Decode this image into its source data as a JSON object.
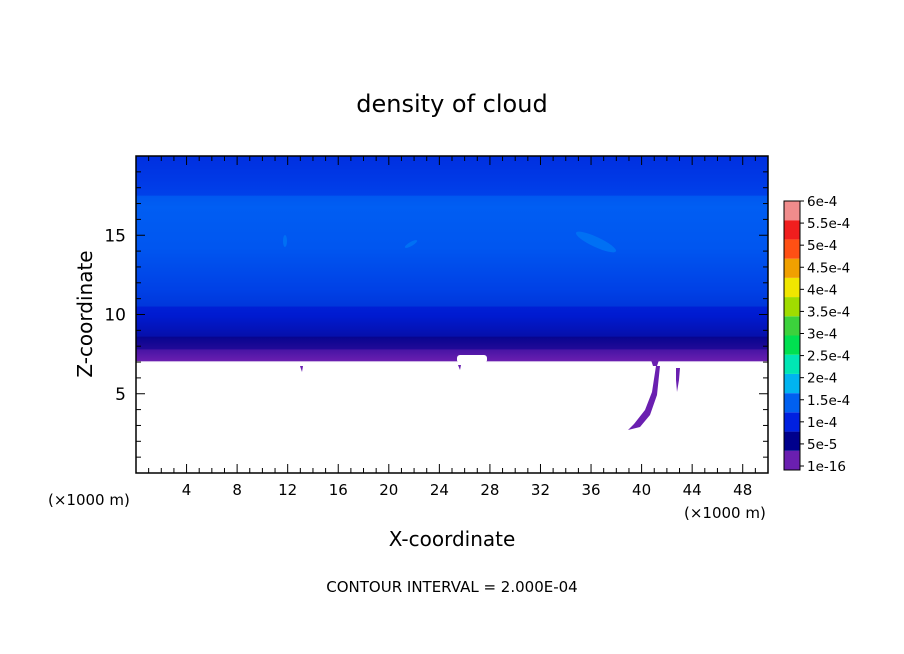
{
  "chart_data": {
    "type": "heatmap",
    "title": "density of cloud",
    "xlabel": "X-coordinate",
    "ylabel": "Z-coordinate",
    "x_unit_left": "(×1000 m)",
    "x_unit_right": "(×1000 m)",
    "footer": "CONTOUR INTERVAL = 2.000E-04",
    "xlim": [
      0,
      50
    ],
    "ylim": [
      0,
      20
    ],
    "x_ticks": [
      4,
      8,
      12,
      16,
      20,
      24,
      28,
      32,
      36,
      40,
      44,
      48
    ],
    "y_ticks": [
      5,
      10,
      15
    ],
    "colorbar": {
      "labels": [
        "1e-16",
        "5e-5",
        "1e-4",
        "1.5e-4",
        "2e-4",
        "2.5e-4",
        "3e-4",
        "3.5e-4",
        "4e-4",
        "4.5e-4",
        "5e-4",
        "5.5e-4",
        "6e-4"
      ],
      "colors": [
        "#6a1fb0",
        "#00008c",
        "#0020e0",
        "#0060f0",
        "#00b4f0",
        "#00e6b4",
        "#00e050",
        "#3cd23c",
        "#a0dc00",
        "#f0e600",
        "#f0a000",
        "#ff5014",
        "#f01e1e",
        "#f08c8c"
      ]
    },
    "bands": [
      {
        "z_from": 7.0,
        "z_to": 7.8,
        "level": "1e-16"
      },
      {
        "z_from": 7.8,
        "z_to": 8.6,
        "level": "5e-5"
      },
      {
        "z_from": 8.6,
        "z_to": 10.5,
        "level": "1e-4"
      },
      {
        "z_from": 10.5,
        "z_to": 17.5,
        "level": "1.5e-4"
      },
      {
        "z_from": 17.5,
        "z_to": 20.0,
        "level": "1e-4"
      }
    ]
  }
}
